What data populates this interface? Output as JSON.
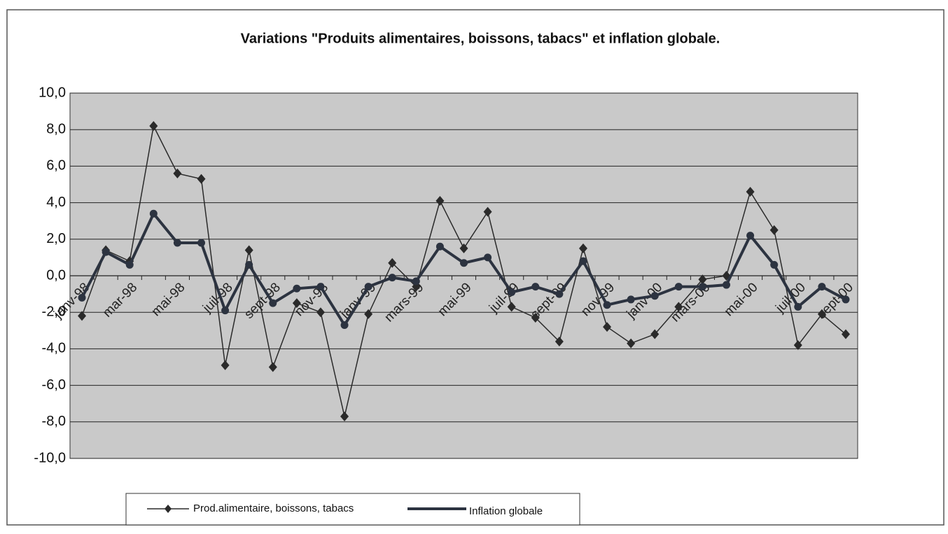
{
  "chart_data": {
    "type": "line",
    "title": "Variations \"Produits alimentaires, boissons, tabacs\" et inflation globale.",
    "categories": [
      "janv-98",
      null,
      "mar-98",
      null,
      "mai-98",
      null,
      "juil-98",
      null,
      "sept-98",
      null,
      "nov-98",
      null,
      "janv-99",
      null,
      "mars-99",
      null,
      "mai-99",
      null,
      "juil-99",
      null,
      "sept-99",
      null,
      "nov-99",
      null,
      "janv-00",
      null,
      "mars-00",
      null,
      "mai-00",
      null,
      "juil-00",
      null,
      "sept-00"
    ],
    "series": [
      {
        "name": "Prod.alimentaire, boissons, tabacs",
        "color": "#2a2a2a",
        "values": [
          -2.2,
          1.4,
          0.8,
          8.2,
          5.6,
          5.3,
          -4.9,
          1.4,
          -5.0,
          -1.5,
          -2.0,
          -7.7,
          -2.1,
          0.7,
          -0.6,
          4.1,
          1.5,
          3.5,
          -1.7,
          -2.3,
          -3.6,
          1.5,
          -2.8,
          -3.7,
          -3.2,
          -1.7,
          -0.2,
          0.0,
          4.6,
          2.5,
          -3.8,
          -2.1,
          -3.2
        ]
      },
      {
        "name": "Inflation globale",
        "color": "#2c3340",
        "values": [
          -1.2,
          1.3,
          0.6,
          3.4,
          1.8,
          1.8,
          -1.9,
          0.6,
          -1.5,
          -0.7,
          -0.6,
          -2.7,
          -0.6,
          -0.1,
          -0.3,
          1.6,
          0.7,
          1.0,
          -0.9,
          -0.6,
          -1.0,
          0.8,
          -1.6,
          -1.3,
          -1.1,
          -0.6,
          -0.6,
          -0.5,
          2.2,
          0.6,
          -1.7,
          -0.6,
          -1.3
        ]
      }
    ],
    "ylim": [
      -10,
      10
    ],
    "yticks": [
      {
        "value": -10,
        "label": "-10,0"
      },
      {
        "value": -8,
        "label": "-8,0"
      },
      {
        "value": -6,
        "label": "-6,0"
      },
      {
        "value": -4,
        "label": "-4,0"
      },
      {
        "value": -2,
        "label": "-2,0"
      },
      {
        "value": 0,
        "label": "0,0"
      },
      {
        "value": 2,
        "label": "2,0"
      },
      {
        "value": 4,
        "label": "4,0"
      },
      {
        "value": 6,
        "label": "6,0"
      },
      {
        "value": 8,
        "label": "8,0"
      },
      {
        "value": 10,
        "label": "10,0"
      }
    ],
    "grid": true,
    "legend": "bottom"
  }
}
